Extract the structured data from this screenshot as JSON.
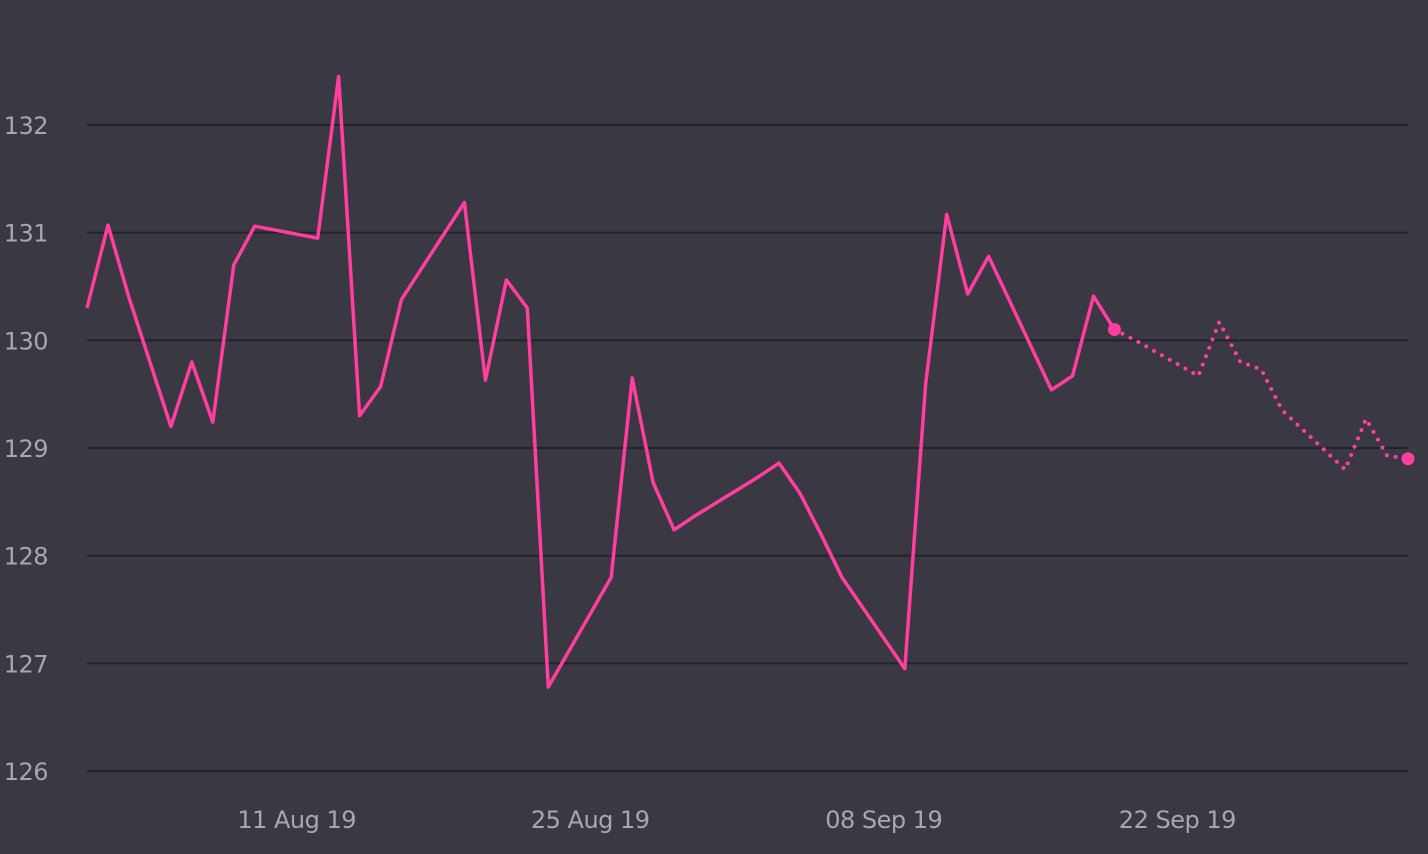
{
  "chart_data": {
    "type": "line",
    "x_axis": {
      "type": "date",
      "range": [
        "2019-08-01",
        "2019-10-04"
      ],
      "tick_labels": [
        {
          "date": "2019-08-11",
          "label": "11 Aug 19"
        },
        {
          "date": "2019-08-25",
          "label": "25 Aug 19"
        },
        {
          "date": "2019-09-08",
          "label": "08 Sep 19"
        },
        {
          "date": "2019-09-22",
          "label": "22 Sep 19"
        }
      ]
    },
    "y_axis": {
      "range": [
        126,
        132.7
      ],
      "ticks": [
        126,
        127,
        128,
        129,
        130,
        131,
        132
      ],
      "tick_labels": [
        "126",
        "127",
        "128",
        "129",
        "130",
        "131",
        "132"
      ],
      "gridlines": true
    },
    "series": [
      {
        "style": "solid",
        "color": "#ff3e9d",
        "points": [
          {
            "x": "2019-08-01",
            "y": 130.3
          },
          {
            "x": "2019-08-02",
            "y": 131.07
          },
          {
            "x": "2019-08-03",
            "y": 130.4
          },
          {
            "x": "2019-08-04",
            "y": 129.8
          },
          {
            "x": "2019-08-05",
            "y": 129.2
          },
          {
            "x": "2019-08-06",
            "y": 129.8
          },
          {
            "x": "2019-08-07",
            "y": 129.24
          },
          {
            "x": "2019-08-08",
            "y": 130.7
          },
          {
            "x": "2019-08-09",
            "y": 131.06
          },
          {
            "x": "2019-08-12",
            "y": 130.95
          },
          {
            "x": "2019-08-13",
            "y": 132.45
          },
          {
            "x": "2019-08-14",
            "y": 129.3
          },
          {
            "x": "2019-08-15",
            "y": 129.57
          },
          {
            "x": "2019-08-16",
            "y": 130.38
          },
          {
            "x": "2019-08-19",
            "y": 131.28
          },
          {
            "x": "2019-08-20",
            "y": 129.63
          },
          {
            "x": "2019-08-21",
            "y": 130.56
          },
          {
            "x": "2019-08-22",
            "y": 130.3
          },
          {
            "x": "2019-08-23",
            "y": 126.78
          },
          {
            "x": "2019-08-26",
            "y": 127.8
          },
          {
            "x": "2019-08-27",
            "y": 129.65
          },
          {
            "x": "2019-08-28",
            "y": 128.68
          },
          {
            "x": "2019-08-29",
            "y": 128.24
          },
          {
            "x": "2019-08-30",
            "y": 128.37
          },
          {
            "x": "2019-09-02",
            "y": 128.73
          },
          {
            "x": "2019-09-03",
            "y": 128.86
          },
          {
            "x": "2019-09-04",
            "y": 128.58
          },
          {
            "x": "2019-09-05",
            "y": 128.2
          },
          {
            "x": "2019-09-06",
            "y": 127.8
          },
          {
            "x": "2019-09-09",
            "y": 126.95
          },
          {
            "x": "2019-09-10",
            "y": 129.6
          },
          {
            "x": "2019-09-11",
            "y": 131.17
          },
          {
            "x": "2019-09-12",
            "y": 130.43
          },
          {
            "x": "2019-09-13",
            "y": 130.78
          },
          {
            "x": "2019-09-16",
            "y": 129.54
          },
          {
            "x": "2019-09-17",
            "y": 129.67
          },
          {
            "x": "2019-09-18",
            "y": 130.41
          },
          {
            "x": "2019-09-19",
            "y": 130.1
          }
        ]
      },
      {
        "style": "dotted",
        "color": "#ff3e9d",
        "points": [
          {
            "x": "2019-09-19",
            "y": 130.1
          },
          {
            "x": "2019-09-20",
            "y": 130.0
          },
          {
            "x": "2019-09-23",
            "y": 129.67
          },
          {
            "x": "2019-09-24",
            "y": 130.17
          },
          {
            "x": "2019-09-25",
            "y": 129.8
          },
          {
            "x": "2019-09-26",
            "y": 129.73
          },
          {
            "x": "2019-09-27",
            "y": 129.35
          },
          {
            "x": "2019-09-30",
            "y": 128.8
          },
          {
            "x": "2019-10-01",
            "y": 129.27
          },
          {
            "x": "2019-10-02",
            "y": 128.93
          },
          {
            "x": "2019-10-03",
            "y": 128.9
          }
        ]
      }
    ],
    "markers": [
      {
        "x": "2019-09-19",
        "y": 130.1
      },
      {
        "x": "2019-10-03",
        "y": 128.9
      }
    ]
  },
  "colors": {
    "background": "#3a3843",
    "grid": "#24222b",
    "tick_text": "#a8a6b0",
    "line": "#ff3e9d"
  }
}
